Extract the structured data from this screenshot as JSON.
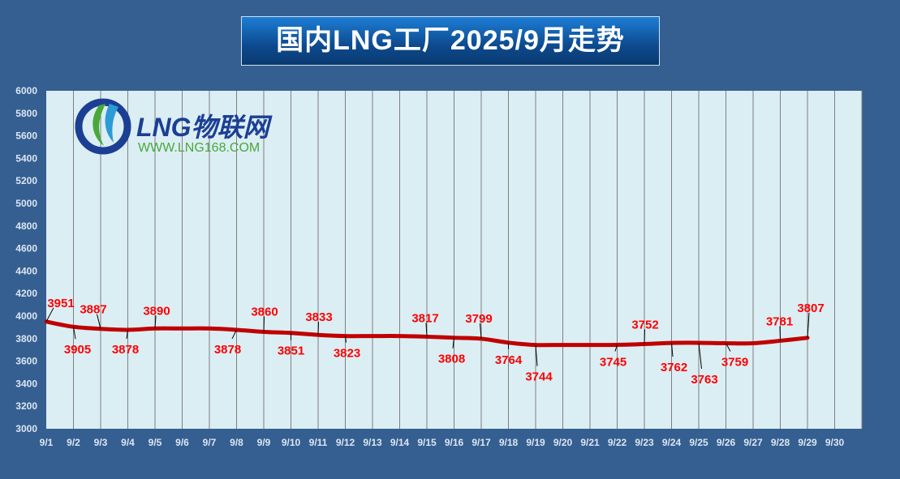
{
  "chart_data": {
    "type": "line",
    "title": "国内LNG工厂2025/9月走势",
    "categories": [
      "9/1",
      "9/2",
      "9/3",
      "9/4",
      "9/5",
      "9/6",
      "9/7",
      "9/8",
      "9/9",
      "9/10",
      "9/11",
      "9/12",
      "9/13",
      "9/14",
      "9/15",
      "9/16",
      "9/17",
      "9/18",
      "9/19",
      "9/20",
      "9/21",
      "9/22",
      "9/23",
      "9/24",
      "9/25",
      "9/26",
      "9/27",
      "9/28",
      "9/29",
      "9/30"
    ],
    "values": [
      3951,
      3905,
      3887,
      3878,
      3890,
      null,
      null,
      3878,
      3860,
      3851,
      3833,
      3823,
      null,
      null,
      3817,
      3808,
      3799,
      3764,
      3744,
      null,
      null,
      3745,
      3752,
      3762,
      3763,
      3759,
      null,
      3781,
      3807,
      null
    ],
    "yticks": [
      "3000",
      "3200",
      "3400",
      "3600",
      "3800",
      "4000",
      "4200",
      "4400",
      "4600",
      "4800",
      "5000",
      "5200",
      "5400",
      "5600",
      "5800",
      "6000"
    ],
    "ylim": [
      3000,
      6000
    ],
    "grid": "vertical",
    "line_color": "#c00000",
    "label_color": "#ff0000",
    "xlabel": "",
    "ylabel": ""
  },
  "logo": {
    "text": "LNG物联网",
    "url": "WWW.LNG168.COM"
  }
}
